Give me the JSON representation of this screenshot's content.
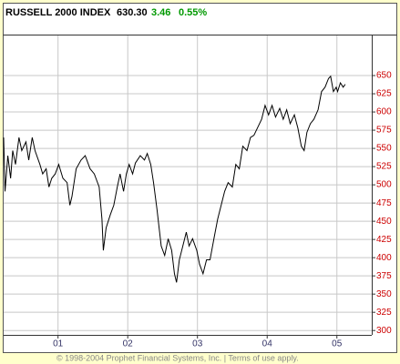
{
  "chart_data": {
    "type": "line",
    "title": "RUSSELL 2000 INDEX",
    "quote": {
      "last": "630.30",
      "change": "3.46",
      "change_pct": "0.55%"
    },
    "footer": "© 1998-2004 Prophet Financial Systems, Inc. | Terms of use apply.",
    "x": [
      2000.22,
      2000.24,
      2000.28,
      2000.32,
      2000.35,
      2000.39,
      2000.44,
      2000.48,
      2000.54,
      2000.58,
      2000.63,
      2000.67,
      2000.74,
      2000.78,
      2000.83,
      2000.87,
      2000.91,
      2000.96,
      2001.01,
      2001.07,
      2001.13,
      2001.17,
      2001.2,
      2001.26,
      2001.33,
      2001.39,
      2001.46,
      2001.52,
      2001.59,
      2001.63,
      2001.65,
      2001.69,
      2001.75,
      2001.8,
      2001.85,
      2001.89,
      2001.94,
      2001.98,
      2002.02,
      2002.07,
      2002.11,
      2002.18,
      2002.24,
      2002.28,
      2002.33,
      2002.37,
      2002.42,
      2002.48,
      2002.53,
      2002.58,
      2002.63,
      2002.67,
      2002.7,
      2002.74,
      2002.79,
      2002.84,
      2002.88,
      2002.93,
      2002.99,
      2003.03,
      2003.08,
      2003.13,
      2003.18,
      2003.24,
      2003.29,
      2003.34,
      2003.39,
      2003.44,
      2003.5,
      2003.55,
      2003.6,
      2003.65,
      2003.71,
      2003.76,
      2003.81,
      2003.86,
      2003.92,
      2003.97,
      2004.02,
      2004.07,
      2004.12,
      2004.18,
      2004.23,
      2004.28,
      2004.33,
      2004.39,
      2004.44,
      2004.49,
      2004.53,
      2004.57,
      2004.62,
      2004.67,
      2004.73,
      2004.78,
      2004.83,
      2004.88,
      2004.91,
      2004.95,
      2004.99,
      2005.01,
      2005.05,
      2005.09,
      2005.12
    ],
    "series": [
      {
        "name": "RUSSELL 2000 INDEX",
        "color": "#000000",
        "values": [
          565,
          491,
          540,
          509,
          547,
          528,
          565,
          547,
          559,
          534,
          565,
          547,
          528,
          515,
          522,
          497,
          509,
          515,
          528,
          509,
          503,
          472,
          484,
          522,
          534,
          540,
          522,
          515,
          497,
          453,
          410,
          441,
          459,
          472,
          497,
          515,
          491,
          515,
          528,
          515,
          530,
          540,
          534,
          543,
          528,
          503,
          466,
          416,
          403,
          426,
          410,
          378,
          366,
          397,
          416,
          435,
          416,
          426,
          410,
          391,
          378,
          397,
          397,
          428,
          453,
          472,
          491,
          503,
          497,
          528,
          522,
          553,
          547,
          565,
          568,
          578,
          590,
          609,
          596,
          609,
          593,
          605,
          590,
          603,
          584,
          596,
          578,
          553,
          547,
          572,
          584,
          590,
          603,
          628,
          634,
          646,
          649,
          628,
          634,
          628,
          640,
          634,
          638
        ]
      }
    ],
    "xlim": [
      2000.22,
      2005.5
    ],
    "xticks": [
      {
        "value": 2001,
        "label": "01"
      },
      {
        "value": 2002,
        "label": "02"
      },
      {
        "value": 2003,
        "label": "03"
      },
      {
        "value": 2004,
        "label": "04"
      },
      {
        "value": 2005,
        "label": "05"
      }
    ],
    "ylim": [
      294,
      705
    ],
    "yticks": [
      300,
      325,
      350,
      375,
      400,
      425,
      450,
      475,
      500,
      525,
      550,
      575,
      600,
      625,
      650
    ],
    "grid": true
  }
}
